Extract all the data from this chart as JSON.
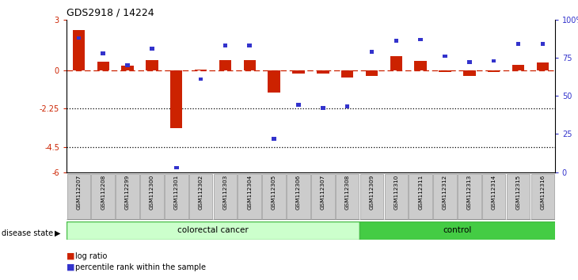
{
  "title": "GDS2918 / 14224",
  "samples": [
    "GSM112207",
    "GSM112208",
    "GSM112299",
    "GSM112300",
    "GSM112301",
    "GSM112302",
    "GSM112303",
    "GSM112304",
    "GSM112305",
    "GSM112306",
    "GSM112307",
    "GSM112308",
    "GSM112309",
    "GSM112310",
    "GSM112311",
    "GSM112312",
    "GSM112313",
    "GSM112314",
    "GSM112315",
    "GSM112316"
  ],
  "log_ratio": [
    2.4,
    0.5,
    0.3,
    0.6,
    -3.4,
    0.05,
    0.6,
    0.6,
    -1.3,
    -0.2,
    -0.2,
    -0.4,
    -0.3,
    0.85,
    0.55,
    -0.1,
    -0.3,
    -0.07,
    0.35,
    0.45
  ],
  "percentile": [
    88,
    78,
    70,
    81,
    3,
    61,
    83,
    83,
    22,
    44,
    42,
    43,
    79,
    86,
    87,
    76,
    72,
    73,
    84,
    84
  ],
  "colorectal_cancer_samples": 12,
  "control_samples": 8,
  "ylim": [
    -6,
    3
  ],
  "dotted_lines": [
    -2.25,
    -4.5
  ],
  "red_color": "#cc2200",
  "blue_color": "#3333cc",
  "colorectal_bg_light": "#ccffcc",
  "colorectal_bg_dark": "#44bb44",
  "control_bg": "#44cc44",
  "label_bg": "#cccccc",
  "label_border": "#999999"
}
